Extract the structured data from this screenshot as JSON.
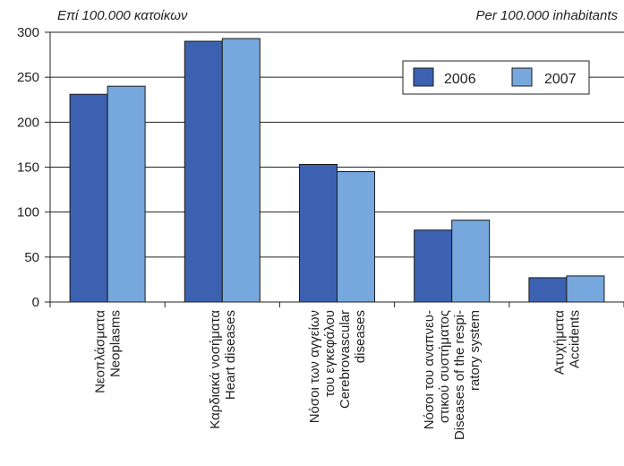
{
  "unit_left": "Επί 100.000 κατοίκων",
  "unit_right": "Per 100.000 inhabitants",
  "colors": {
    "2006": "#3c61b0",
    "2007": "#76a8dd",
    "edge": "#1a1a1a",
    "grid": "#222222"
  },
  "chart_data": {
    "type": "bar",
    "categories": [
      [
        "Νεοπλάσματα",
        "Neoplasms"
      ],
      [
        "Καρδιακά νοσήματα",
        "Heart diseases"
      ],
      [
        "Νόσοι των αγγείων",
        "του εγκεφάλου",
        "Cerebrovascular",
        "diseases"
      ],
      [
        "Νόσοι του αναπνευ-",
        "στικού συστήματος",
        "Diseases of the respi-",
        "ratory system"
      ],
      [
        "Ατυχήματα",
        "Accidents"
      ]
    ],
    "series": [
      {
        "name": "2006",
        "values": [
          231,
          290,
          153,
          80,
          27
        ]
      },
      {
        "name": "2007",
        "values": [
          240,
          293,
          145,
          91,
          29
        ]
      }
    ],
    "ylim": [
      0,
      300
    ],
    "yticks": [
      0,
      50,
      100,
      150,
      200,
      250,
      300
    ],
    "grid": true,
    "legend": "top-right"
  }
}
